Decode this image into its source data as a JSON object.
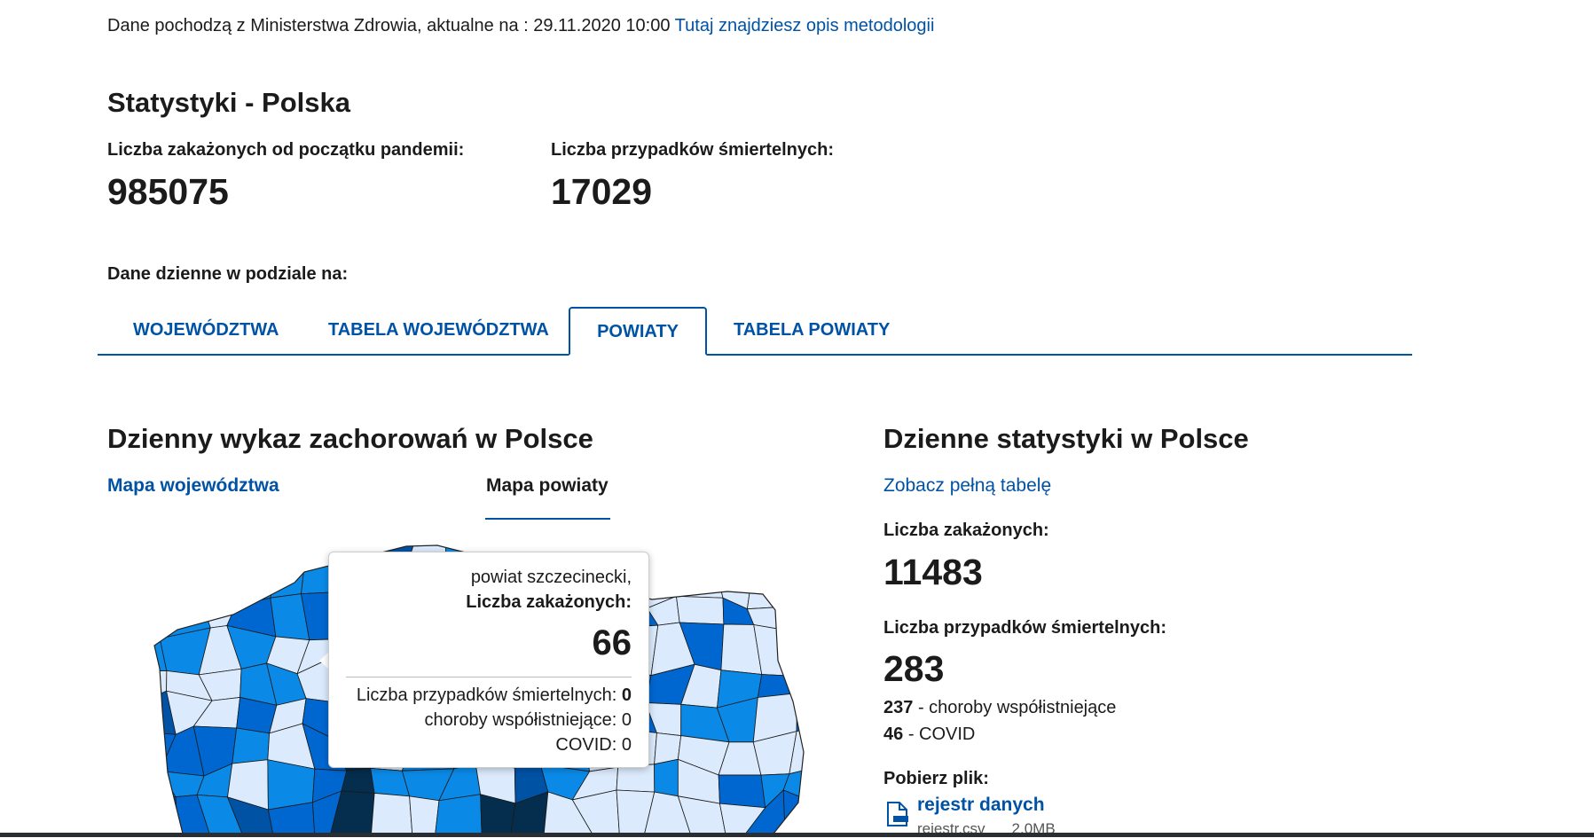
{
  "source": {
    "text": "Dane pochodzą z Ministerstwa Zdrowia, aktualne na : 29.11.2020 10:00",
    "link": "Tutaj znajdziesz opis metodologii"
  },
  "stats": {
    "title": "Statystyki - Polska",
    "infected_label": "Liczba zakażonych od początku pandemii:",
    "infected_value": "985075",
    "deaths_label": "Liczba przypadków śmiertelnych:",
    "deaths_value": "17029"
  },
  "daily_label": "Dane dzienne w podziale na:",
  "tabs": [
    {
      "label": "WOJEWÓDZTWA"
    },
    {
      "label": "TABELA WOJEWÓDZTWA"
    },
    {
      "label": "POWIATY",
      "active": true
    },
    {
      "label": "TABELA POWIATY"
    }
  ],
  "left": {
    "heading": "Dzienny wykaz zachorowań w Polsce",
    "map_links": [
      "Mapa województwa",
      "Mapa powiaty"
    ],
    "map_colors": [
      "#dbeafc",
      "#0a8ae6",
      "#0067d0",
      "#0052a5",
      "#052d4d"
    ],
    "tooltip": {
      "region": "powiat szczecinecki,",
      "infected_label": "Liczba zakażonych:",
      "infected_value": "66",
      "deaths_label": "Liczba przypadków śmiertelnych:",
      "deaths_value": "0",
      "comorbid_label": "choroby współistniejące:",
      "comorbid_value": "0",
      "covid_label": "COVID:",
      "covid_value": "0"
    }
  },
  "right": {
    "heading": "Dzienne statystyki w Polsce",
    "full_table_link": "Zobacz pełną tabelę",
    "infected_label": "Liczba zakażonych:",
    "infected_value": "11483",
    "deaths_label": "Liczba przypadków śmiertelnych:",
    "deaths_value": "283",
    "comorbid_value": "237",
    "comorbid_label": "- choroby współistniejące",
    "covid_value": "46",
    "covid_label": "- COVID",
    "download_label": "Pobierz plik:",
    "file_link": "rejestr danych",
    "file_name": "rejestr.csv",
    "file_size": "2.0MB",
    "file_icon": "file-csv-icon"
  }
}
